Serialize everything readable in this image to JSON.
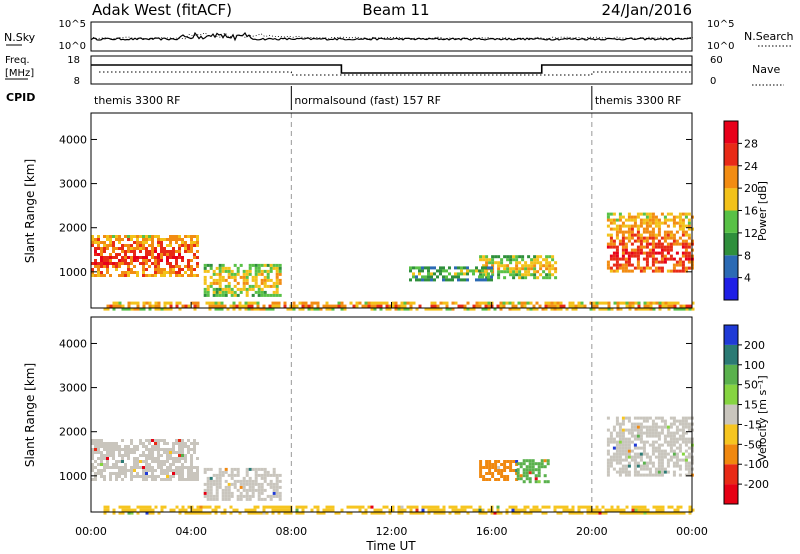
{
  "header": {
    "station": "Adak West (fitACF)",
    "beam": "Beam 11",
    "date": "24/Jan/2016"
  },
  "nsky_panel": {
    "left_label": "N.Sky",
    "right_label": "N.Search",
    "left_ticks": [
      "10^5",
      "10^0"
    ],
    "right_ticks": [
      "10^5",
      "10^0"
    ]
  },
  "freq_panel": {
    "left_label": "Freq.",
    "left_unit": "[MHz]",
    "right_label": "Nave",
    "left_ticks": [
      "18",
      "8"
    ],
    "right_ticks": [
      "60",
      "0"
    ]
  },
  "cpid_panel": {
    "label": "CPID",
    "segments": [
      {
        "text": "themis 3300 RF",
        "start_hour": 0,
        "end_hour": 8
      },
      {
        "text": "normalsound (fast) 157 RF",
        "start_hour": 8,
        "end_hour": 20
      },
      {
        "text": "themis 3300 RF",
        "start_hour": 20,
        "end_hour": 24
      }
    ]
  },
  "time_axis": {
    "title": "Time UT",
    "ticks": [
      "00:00",
      "04:00",
      "08:00",
      "12:00",
      "16:00",
      "20:00",
      "00:00"
    ]
  },
  "chart_data": [
    {
      "type": "heatmap",
      "name": "power",
      "ylabel": "Slant Range [km]",
      "ylim": [
        180,
        4600
      ],
      "yticks": [
        "1000",
        "2000",
        "3000",
        "4000"
      ],
      "xlim_hours": [
        0,
        24
      ],
      "colorbar_title": "Power [dB]",
      "colorbar_ticks": [
        "4",
        "8",
        "12",
        "16",
        "20",
        "24",
        "28"
      ],
      "colorbar_colors": [
        "#1f1fe6",
        "#2b6ab4",
        "#2f8f3c",
        "#58c146",
        "#f3c21a",
        "#f28c12",
        "#e82a16",
        "#e8001a"
      ],
      "colorbar_range": [
        0,
        32
      ],
      "regions": [
        {
          "t0": 0.0,
          "t1": 4.3,
          "r0": 950,
          "r1": 1850,
          "core": 1350,
          "level": 20
        },
        {
          "t0": 4.5,
          "t1": 7.5,
          "r0": 500,
          "r1": 1200,
          "core": 850,
          "level": 13
        },
        {
          "t0": 0.5,
          "t1": 24.0,
          "r0": 190,
          "r1": 380,
          "core": 270,
          "level": 16
        },
        {
          "t0": 15.5,
          "t1": 18.5,
          "r0": 900,
          "r1": 1400,
          "core": 1150,
          "level": 13
        },
        {
          "t0": 20.6,
          "t1": 24.0,
          "r0": 1050,
          "r1": 2350,
          "core": 1450,
          "level": 20
        },
        {
          "t0": 12.7,
          "t1": 16.0,
          "r0": 850,
          "r1": 1150,
          "core": 1000,
          "level": 8
        }
      ]
    },
    {
      "type": "heatmap",
      "name": "velocity",
      "ylabel": "Slant Range [km]",
      "ylim": [
        180,
        4600
      ],
      "yticks": [
        "1000",
        "2000",
        "3000",
        "4000"
      ],
      "xlim_hours": [
        0,
        24
      ],
      "colorbar_title": "Velocity [m s⁻¹]",
      "colorbar_ticks": [
        "200",
        "100",
        "50",
        "15",
        "-15",
        "-50",
        "-100",
        "-200"
      ],
      "colorbar_colors": [
        "#1f3ad6",
        "#2b7a74",
        "#5ab14d",
        "#86d441",
        "#c9c5bd",
        "#f6c520",
        "#f0880f",
        "#e82a16",
        "#e60014"
      ],
      "regions": [
        {
          "t0": 0.0,
          "t1": 4.3,
          "r0": 950,
          "r1": 1850,
          "color": "#c9c5bd"
        },
        {
          "t0": 4.5,
          "t1": 7.5,
          "r0": 500,
          "r1": 1200,
          "color": "#c9c5bd"
        },
        {
          "t0": 0.5,
          "t1": 24.0,
          "r0": 190,
          "r1": 380,
          "color": "#f6c520"
        },
        {
          "t0": 15.5,
          "t1": 17.0,
          "r0": 950,
          "r1": 1400,
          "color": "#f0880f"
        },
        {
          "t0": 17.0,
          "t1": 18.3,
          "r0": 900,
          "r1": 1400,
          "color": "#5ab14d"
        },
        {
          "t0": 20.6,
          "t1": 24.0,
          "r0": 1050,
          "r1": 2350,
          "color": "#c9c5bd"
        }
      ]
    }
  ]
}
